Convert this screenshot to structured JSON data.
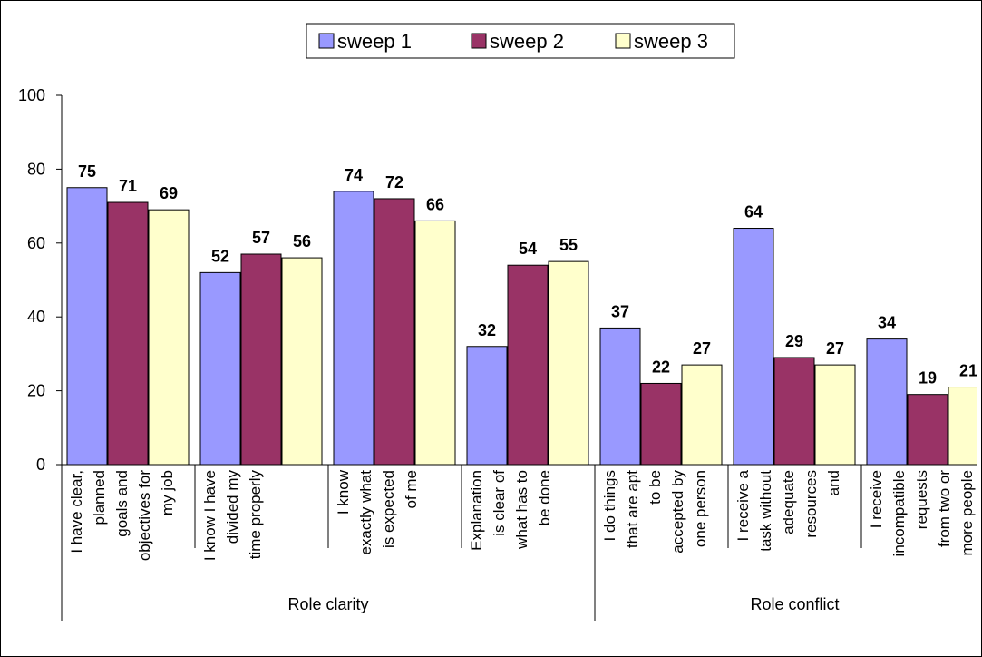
{
  "chart_data": {
    "type": "bar",
    "ylim": [
      0,
      100
    ],
    "yticks": [
      0,
      20,
      40,
      60,
      80,
      100
    ],
    "grid": false,
    "legend_position": "top-center",
    "categories": [
      [
        "I have clear,",
        "planned",
        "goals and",
        "objectives for",
        "my job"
      ],
      [
        "I know I have",
        "divided my",
        "time properly"
      ],
      [
        "I know",
        "exactly what",
        "is expected",
        "of me"
      ],
      [
        "Explanation",
        "is clear of",
        "what has to",
        "be done"
      ],
      [
        "I do things",
        "that are apt",
        "to be",
        "accepted by",
        "one person"
      ],
      [
        "I receive a",
        "task without",
        "adequate",
        "resources",
        "and"
      ],
      [
        "I receive",
        "incompatible",
        "requests",
        "from two or",
        "more people"
      ]
    ],
    "groups": [
      {
        "label": "Role clarity",
        "categories": [
          0,
          1,
          2,
          3
        ]
      },
      {
        "label": "Role conflict",
        "categories": [
          4,
          5,
          6
        ]
      }
    ],
    "series": [
      {
        "name": "sweep 1",
        "color": "#9999ff",
        "values": [
          75,
          52,
          74,
          32,
          37,
          64,
          34
        ]
      },
      {
        "name": "sweep 2",
        "color": "#993366",
        "values": [
          71,
          57,
          72,
          54,
          22,
          29,
          19
        ]
      },
      {
        "name": "sweep 3",
        "color": "#ffffcc",
        "values": [
          69,
          56,
          66,
          55,
          27,
          27,
          21
        ]
      }
    ]
  }
}
